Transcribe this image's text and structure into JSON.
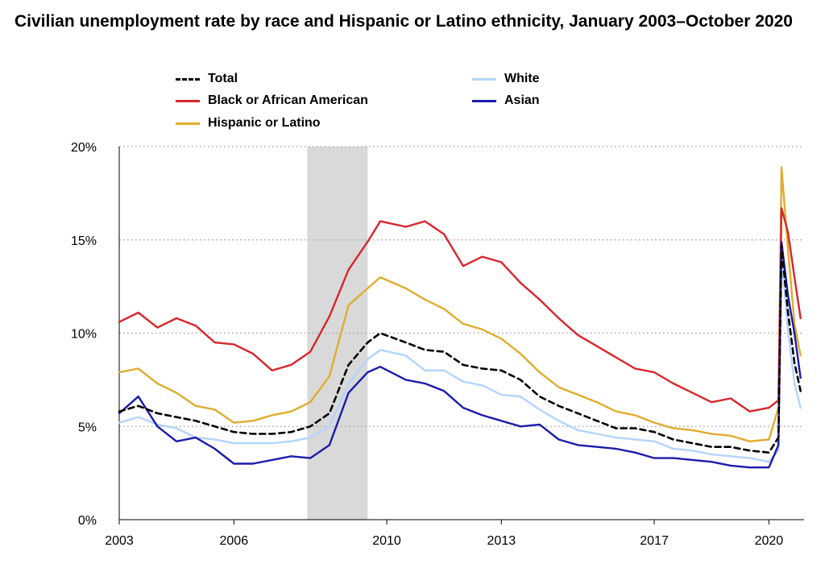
{
  "chart_data": {
    "type": "line",
    "title": "Civilian unemployment rate by race and Hispanic or Latino ethnicity, January 2003–October 2020",
    "xlabel": "",
    "ylabel": "",
    "xlim": [
      2003,
      2020.92
    ],
    "ylim": [
      0,
      20
    ],
    "x_ticks": [
      "2003",
      "2006",
      "2010",
      "2013",
      "2017",
      "2020"
    ],
    "x_tick_values": [
      2003,
      2006,
      2010,
      2013,
      2017,
      2020
    ],
    "y_ticks": [
      "0%",
      "5%",
      "10%",
      "15%",
      "20%"
    ],
    "y_tick_values": [
      0,
      5,
      10,
      15,
      20
    ],
    "grid": "horizontal dotted",
    "legend_position": "top",
    "recession_shading": [
      [
        2007.92,
        2009.5
      ]
    ],
    "series": [
      {
        "name": "Total",
        "color": "#000000",
        "style": "dashed",
        "x": [
          2003,
          2003.5,
          2004,
          2004.5,
          2005,
          2005.5,
          2006,
          2006.5,
          2007,
          2007.5,
          2008,
          2008.5,
          2009,
          2009.5,
          2009.83,
          2010.5,
          2011,
          2011.5,
          2012,
          2012.5,
          2013,
          2013.5,
          2014,
          2014.5,
          2015,
          2015.5,
          2016,
          2016.5,
          2017,
          2017.5,
          2018,
          2018.5,
          2019,
          2019.5,
          2020,
          2020.25,
          2020.33,
          2020.5,
          2020.67,
          2020.83
        ],
        "y": [
          5.8,
          6.1,
          5.7,
          5.5,
          5.3,
          5.0,
          4.7,
          4.6,
          4.6,
          4.7,
          5.0,
          5.7,
          8.3,
          9.5,
          10.0,
          9.5,
          9.1,
          9.0,
          8.3,
          8.1,
          8.0,
          7.5,
          6.6,
          6.1,
          5.7,
          5.3,
          4.9,
          4.9,
          4.7,
          4.3,
          4.1,
          3.9,
          3.9,
          3.7,
          3.6,
          4.4,
          14.7,
          11.1,
          8.4,
          6.9
        ]
      },
      {
        "name": "White",
        "color": "#b3d4ff",
        "style": "solid",
        "x": [
          2003,
          2003.5,
          2004,
          2004.5,
          2005,
          2005.5,
          2006,
          2006.5,
          2007,
          2007.5,
          2008,
          2008.5,
          2009,
          2009.5,
          2009.83,
          2010.5,
          2011,
          2011.5,
          2012,
          2012.5,
          2013,
          2013.5,
          2014,
          2014.5,
          2015,
          2015.5,
          2016,
          2016.5,
          2017,
          2017.5,
          2018,
          2018.5,
          2019,
          2019.5,
          2020,
          2020.25,
          2020.33,
          2020.5,
          2020.67,
          2020.83
        ],
        "y": [
          5.2,
          5.5,
          5.1,
          4.9,
          4.4,
          4.3,
          4.1,
          4.1,
          4.1,
          4.2,
          4.4,
          5.0,
          7.3,
          8.6,
          9.1,
          8.8,
          8.0,
          8.0,
          7.4,
          7.2,
          6.7,
          6.6,
          5.9,
          5.3,
          4.8,
          4.6,
          4.4,
          4.3,
          4.2,
          3.8,
          3.7,
          3.5,
          3.4,
          3.3,
          3.1,
          3.7,
          14.2,
          10.1,
          7.3,
          6.0
        ]
      },
      {
        "name": "Black or African American",
        "color": "#d9252b",
        "style": "solid",
        "x": [
          2003,
          2003.5,
          2004,
          2004.5,
          2005,
          2005.5,
          2006,
          2006.5,
          2007,
          2007.5,
          2008,
          2008.5,
          2009,
          2009.5,
          2009.83,
          2010.5,
          2011,
          2011.5,
          2012,
          2012.5,
          2013,
          2013.5,
          2014,
          2014.5,
          2015,
          2015.5,
          2016,
          2016.5,
          2017,
          2017.5,
          2018,
          2018.5,
          2019,
          2019.5,
          2020,
          2020.25,
          2020.33,
          2020.5,
          2020.67,
          2020.83
        ],
        "y": [
          10.6,
          11.1,
          10.3,
          10.8,
          10.4,
          9.5,
          9.4,
          8.9,
          8.0,
          8.3,
          9.0,
          10.9,
          13.4,
          14.9,
          16.0,
          15.7,
          16.0,
          15.3,
          13.6,
          14.1,
          13.8,
          12.7,
          11.8,
          10.8,
          9.9,
          9.3,
          8.7,
          8.1,
          7.9,
          7.3,
          6.8,
          6.3,
          6.5,
          5.8,
          6.0,
          6.4,
          16.7,
          15.4,
          13.0,
          10.8
        ]
      },
      {
        "name": "Asian",
        "color": "#1b1bab",
        "style": "solid",
        "x": [
          2003,
          2003.5,
          2004,
          2004.5,
          2005,
          2005.5,
          2006,
          2006.5,
          2007,
          2007.5,
          2008,
          2008.5,
          2009,
          2009.5,
          2009.83,
          2010.5,
          2011,
          2011.5,
          2012,
          2012.5,
          2013,
          2013.5,
          2014,
          2014.5,
          2015,
          2015.5,
          2016,
          2016.5,
          2017,
          2017.5,
          2018,
          2018.5,
          2019,
          2019.5,
          2020,
          2020.25,
          2020.33,
          2020.5,
          2020.67,
          2020.83
        ],
        "y": [
          5.7,
          6.6,
          5.0,
          4.2,
          4.4,
          3.8,
          3.0,
          3.0,
          3.2,
          3.4,
          3.3,
          4.0,
          6.8,
          7.9,
          8.2,
          7.5,
          7.3,
          6.9,
          6.0,
          5.6,
          5.3,
          5.0,
          5.1,
          4.3,
          4.0,
          3.9,
          3.8,
          3.6,
          3.3,
          3.3,
          3.2,
          3.1,
          2.9,
          2.8,
          2.8,
          4.0,
          14.9,
          12.0,
          10.0,
          7.6
        ]
      },
      {
        "name": "Hispanic or Latino",
        "color": "#e0ac2e",
        "style": "solid",
        "x": [
          2003,
          2003.5,
          2004,
          2004.5,
          2005,
          2005.5,
          2006,
          2006.5,
          2007,
          2007.5,
          2008,
          2008.5,
          2009,
          2009.5,
          2009.83,
          2010.5,
          2011,
          2011.5,
          2012,
          2012.5,
          2013,
          2013.5,
          2014,
          2014.5,
          2015,
          2015.5,
          2016,
          2016.5,
          2017,
          2017.5,
          2018,
          2018.5,
          2019,
          2019.5,
          2020,
          2020.25,
          2020.33,
          2020.5,
          2020.67,
          2020.83
        ],
        "y": [
          7.9,
          8.1,
          7.3,
          6.8,
          6.1,
          5.9,
          5.2,
          5.3,
          5.6,
          5.8,
          6.3,
          7.7,
          11.5,
          12.4,
          13.0,
          12.4,
          11.8,
          11.3,
          10.5,
          10.2,
          9.7,
          8.9,
          7.9,
          7.1,
          6.7,
          6.3,
          5.8,
          5.6,
          5.2,
          4.9,
          4.8,
          4.6,
          4.5,
          4.2,
          4.3,
          6.0,
          18.9,
          14.5,
          10.5,
          8.8
        ]
      }
    ]
  }
}
